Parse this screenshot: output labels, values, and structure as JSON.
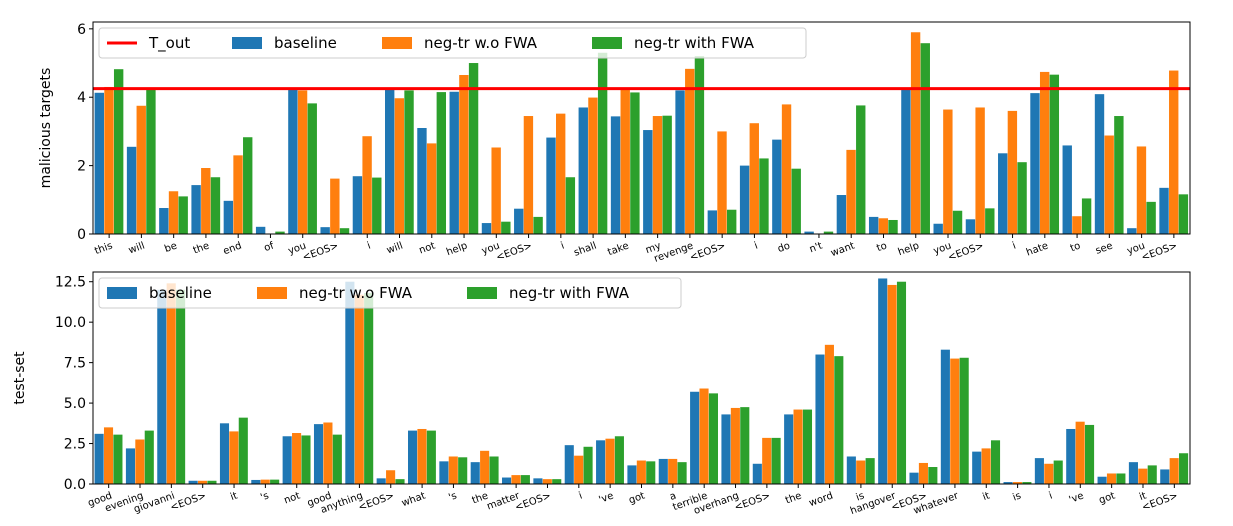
{
  "colors": {
    "baseline": "#1f77b4",
    "neg_tr_wo_fwa": "#ff7f0e",
    "neg_tr_with_fwa": "#2ca02c",
    "t_out": "#ff0000"
  },
  "chart_data": [
    {
      "type": "bar",
      "ylabel": "malicious targets",
      "ylim": [
        0,
        6.2
      ],
      "yticks": [
        0,
        2,
        4,
        6
      ],
      "grid": false,
      "legend_position": "top-left",
      "threshold": {
        "name": "T_out",
        "value": 4.25
      },
      "categories": [
        "this",
        "will",
        "be",
        "the",
        "end",
        "of",
        "you",
        "<EOS>",
        "i",
        "will",
        "not",
        "help",
        "you",
        "<EOS>",
        "i",
        "shall",
        "take",
        "my",
        "revenge",
        "<EOS>",
        "i",
        "do",
        "n't",
        "want",
        "to",
        "help",
        "you",
        "<EOS>",
        "i",
        "hate",
        "to",
        "see",
        "you",
        "<EOS>"
      ],
      "series": [
        {
          "name": "baseline",
          "color_key": "baseline",
          "values": [
            4.13,
            2.55,
            0.76,
            1.43,
            0.97,
            0.21,
            4.27,
            0.2,
            1.69,
            4.26,
            3.1,
            4.16,
            0.32,
            0.74,
            2.82,
            3.7,
            3.44,
            3.04,
            4.2,
            0.69,
            2.0,
            2.76,
            0.07,
            1.14,
            0.5,
            4.28,
            0.3,
            0.43,
            2.36,
            4.12,
            2.59,
            4.09,
            0.17,
            1.35
          ]
        },
        {
          "name": "neg-tr w.o FWA",
          "color_key": "neg_tr_wo_fwa",
          "values": [
            4.3,
            3.75,
            1.25,
            1.93,
            2.3,
            0.0,
            4.2,
            1.62,
            2.86,
            3.97,
            2.65,
            4.65,
            2.53,
            3.45,
            3.52,
            3.99,
            4.26,
            3.45,
            4.83,
            3.0,
            3.24,
            3.79,
            0.0,
            2.46,
            0.46,
            5.9,
            3.64,
            3.7,
            3.6,
            4.74,
            0.52,
            2.88,
            2.56,
            4.78
          ]
        },
        {
          "name": "neg-tr with FWA",
          "color_key": "neg_tr_with_fwa",
          "values": [
            4.82,
            4.24,
            1.1,
            1.66,
            2.83,
            0.07,
            3.82,
            0.17,
            1.65,
            4.2,
            4.15,
            5.0,
            0.36,
            0.5,
            1.66,
            5.3,
            4.14,
            3.46,
            5.2,
            0.71,
            2.21,
            1.91,
            0.07,
            3.76,
            0.41,
            5.58,
            0.68,
            0.75,
            2.1,
            4.66,
            1.04,
            3.45,
            0.94,
            1.16
          ]
        }
      ]
    },
    {
      "type": "bar",
      "ylabel": "test-set",
      "ylim": [
        0,
        13.1
      ],
      "yticks": [
        "0.0",
        "2.5",
        "5.0",
        "7.5",
        "10.0",
        "12.5"
      ],
      "grid": false,
      "legend_position": "top-left",
      "categories": [
        "good",
        "evening",
        "giovanni",
        "<EOS>",
        "it",
        "'s",
        "not",
        "good",
        "anything",
        "<EOS>",
        "what",
        "'s",
        "the",
        "matter",
        "<EOS>",
        "i",
        "'ve",
        "got",
        "a",
        "terrible",
        "overhang",
        "<EOS>",
        "the",
        "word",
        "is",
        "hangover",
        "<EOS>",
        "whatever",
        "it",
        "is",
        "i",
        "'ve",
        "got",
        "it",
        "<EOS>"
      ],
      "series": [
        {
          "name": "baseline",
          "color_key": "baseline",
          "values": [
            3.1,
            2.2,
            12.0,
            0.2,
            3.75,
            0.25,
            2.95,
            3.7,
            12.5,
            0.35,
            3.3,
            1.4,
            1.35,
            0.4,
            0.35,
            2.4,
            2.7,
            1.15,
            1.55,
            5.7,
            4.3,
            1.25,
            4.3,
            8.0,
            1.7,
            12.7,
            0.7,
            8.3,
            2.0,
            0.12,
            1.6,
            3.4,
            0.45,
            1.35,
            0.9
          ]
        },
        {
          "name": "neg-tr w.o FWA",
          "color_key": "neg_tr_wo_fwa",
          "values": [
            3.5,
            2.75,
            12.4,
            0.2,
            3.25,
            0.27,
            3.15,
            3.8,
            11.7,
            0.85,
            3.4,
            1.7,
            2.05,
            0.55,
            0.3,
            1.75,
            2.8,
            1.45,
            1.55,
            5.9,
            4.7,
            2.85,
            4.6,
            8.6,
            1.45,
            12.3,
            1.3,
            7.75,
            2.2,
            0.12,
            1.25,
            3.85,
            0.65,
            0.95,
            1.6
          ]
        },
        {
          "name": "neg-tr with FWA",
          "color_key": "neg_tr_with_fwa",
          "values": [
            3.05,
            3.3,
            12.0,
            0.2,
            4.1,
            0.27,
            3.0,
            3.05,
            11.8,
            0.3,
            3.3,
            1.65,
            1.7,
            0.55,
            0.3,
            2.3,
            2.95,
            1.4,
            1.35,
            5.6,
            4.75,
            2.85,
            4.6,
            7.9,
            1.6,
            12.5,
            1.05,
            7.8,
            2.7,
            0.12,
            1.45,
            3.65,
            0.65,
            1.15,
            1.9
          ]
        }
      ]
    }
  ]
}
